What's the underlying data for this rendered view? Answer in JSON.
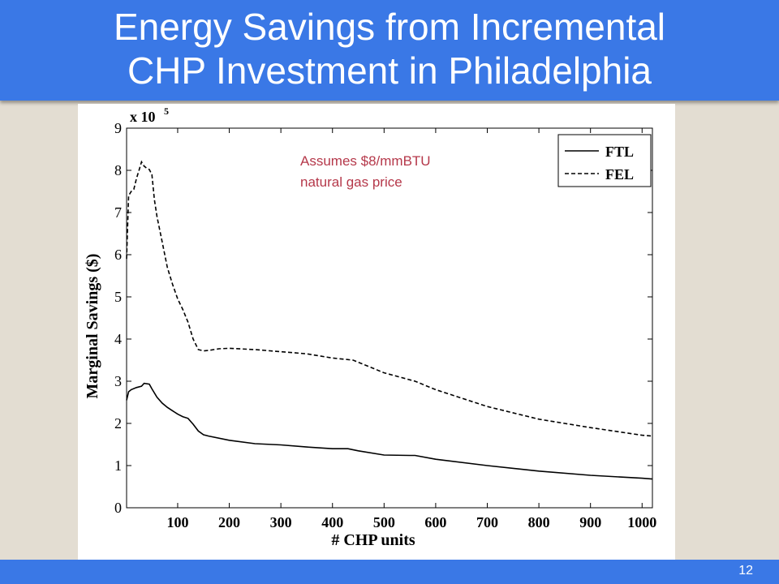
{
  "slide": {
    "title_line1": "Energy Savings from Incremental",
    "title_line2": "CHP Investment in Philadelphia",
    "page_number": "12",
    "accent_color": "#3a78e6",
    "background_color": "#e3ddd2"
  },
  "chart_data": {
    "type": "line",
    "title": "",
    "xlabel": "# CHP units",
    "ylabel": "Marginal Savings ($)",
    "y_multiplier_label": "x 10",
    "y_multiplier_exponent": "5",
    "xlim": [
      1,
      1020
    ],
    "ylim": [
      0,
      9
    ],
    "xticks": [
      100,
      200,
      300,
      400,
      500,
      600,
      700,
      800,
      900,
      1000
    ],
    "yticks": [
      0,
      1,
      2,
      3,
      4,
      5,
      6,
      7,
      8,
      9
    ],
    "grid": false,
    "legend_position": "top-right",
    "annotation": [
      "Assumes $8/mmBTU",
      "natural gas price"
    ],
    "annotation_color": "#b5384a",
    "series": [
      {
        "name": "FTL",
        "style": "solid",
        "x": [
          1,
          5,
          10,
          20,
          30,
          35,
          45,
          50,
          60,
          70,
          80,
          90,
          100,
          110,
          120,
          130,
          140,
          150,
          160,
          200,
          250,
          300,
          350,
          400,
          430,
          450,
          500,
          550,
          560,
          600,
          700,
          800,
          900,
          1000,
          1020
        ],
        "y": [
          2.55,
          2.75,
          2.8,
          2.85,
          2.88,
          2.95,
          2.93,
          2.82,
          2.62,
          2.48,
          2.38,
          2.3,
          2.22,
          2.16,
          2.12,
          1.98,
          1.82,
          1.73,
          1.7,
          1.6,
          1.52,
          1.49,
          1.44,
          1.4,
          1.4,
          1.35,
          1.25,
          1.24,
          1.24,
          1.15,
          1.0,
          0.87,
          0.77,
          0.7,
          0.68
        ]
      },
      {
        "name": "FEL",
        "style": "dashed",
        "x": [
          1,
          5,
          10,
          15,
          20,
          25,
          30,
          35,
          40,
          45,
          50,
          55,
          60,
          70,
          80,
          90,
          100,
          110,
          120,
          130,
          140,
          150,
          160,
          180,
          200,
          250,
          300,
          350,
          400,
          440,
          450,
          500,
          560,
          600,
          700,
          800,
          900,
          1000,
          1020
        ],
        "y": [
          5.9,
          7.4,
          7.5,
          7.55,
          7.8,
          8.0,
          8.2,
          8.1,
          8.05,
          8.02,
          7.9,
          7.3,
          6.9,
          6.3,
          5.7,
          5.3,
          4.95,
          4.7,
          4.4,
          4.0,
          3.75,
          3.72,
          3.73,
          3.77,
          3.78,
          3.75,
          3.7,
          3.65,
          3.55,
          3.5,
          3.45,
          3.2,
          3.0,
          2.8,
          2.4,
          2.1,
          1.9,
          1.72,
          1.7
        ]
      }
    ]
  }
}
